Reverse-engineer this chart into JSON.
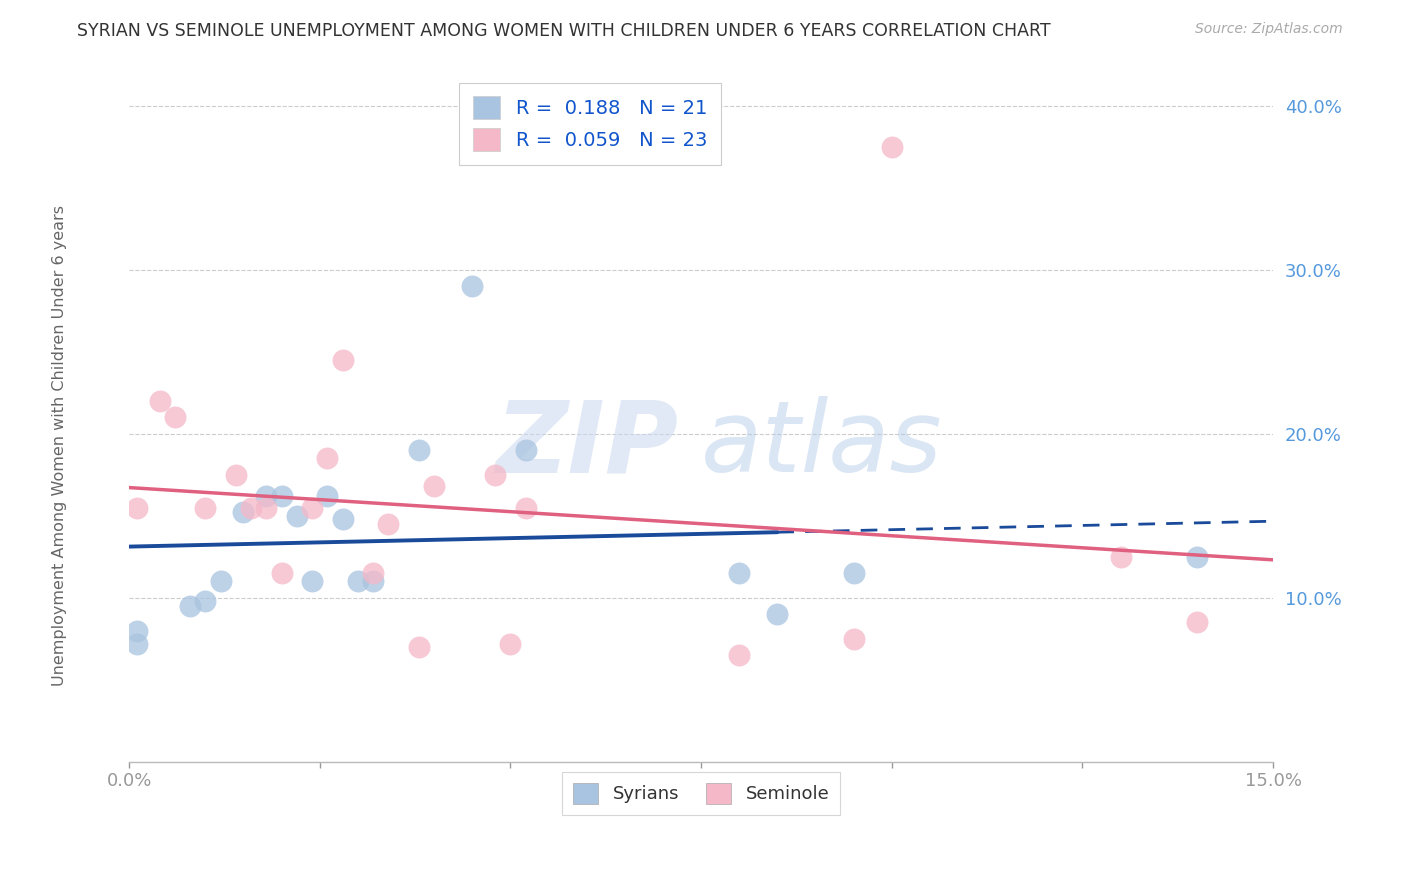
{
  "title": "SYRIAN VS SEMINOLE UNEMPLOYMENT AMONG WOMEN WITH CHILDREN UNDER 6 YEARS CORRELATION CHART",
  "source": "Source: ZipAtlas.com",
  "ylabel": "Unemployment Among Women with Children Under 6 years",
  "xlim": [
    0.0,
    0.15
  ],
  "ylim": [
    0.0,
    0.42
  ],
  "yticks": [
    0.0,
    0.1,
    0.2,
    0.3,
    0.4
  ],
  "ytick_labels": [
    "",
    "10.0%",
    "20.0%",
    "30.0%",
    "40.0%"
  ],
  "xticks": [
    0.0,
    0.025,
    0.05,
    0.075,
    0.1,
    0.125,
    0.15
  ],
  "syrians_color": "#a8c4e0",
  "seminole_color": "#f4b8c8",
  "syrians_line_color": "#1a4a9a",
  "seminole_line_color": "#e06080",
  "r_syrians": 0.188,
  "n_syrians": 21,
  "r_seminole": 0.059,
  "n_seminole": 23,
  "legend_label_syrians": "Syrians",
  "legend_label_seminole": "Seminole",
  "watermark_zip": "ZIP",
  "watermark_atlas": "atlas",
  "syrians_x": [
    0.001,
    0.001,
    0.008,
    0.01,
    0.012,
    0.015,
    0.018,
    0.02,
    0.022,
    0.024,
    0.026,
    0.028,
    0.03,
    0.032,
    0.038,
    0.045,
    0.052,
    0.08,
    0.085,
    0.095,
    0.14
  ],
  "syrians_y": [
    0.072,
    0.08,
    0.095,
    0.098,
    0.11,
    0.152,
    0.162,
    0.162,
    0.15,
    0.11,
    0.162,
    0.148,
    0.11,
    0.11,
    0.19,
    0.29,
    0.19,
    0.115,
    0.09,
    0.115,
    0.125
  ],
  "seminole_x": [
    0.001,
    0.004,
    0.006,
    0.01,
    0.014,
    0.016,
    0.018,
    0.02,
    0.024,
    0.026,
    0.028,
    0.032,
    0.034,
    0.038,
    0.04,
    0.048,
    0.05,
    0.052,
    0.08,
    0.095,
    0.1,
    0.13,
    0.14
  ],
  "seminole_y": [
    0.155,
    0.22,
    0.21,
    0.155,
    0.175,
    0.155,
    0.155,
    0.115,
    0.155,
    0.185,
    0.245,
    0.115,
    0.145,
    0.07,
    0.168,
    0.175,
    0.072,
    0.155,
    0.065,
    0.075,
    0.375,
    0.125,
    0.085
  ],
  "background_color": "#ffffff",
  "grid_color": "#cccccc",
  "title_color": "#333333",
  "axis_label_color": "#5599dd",
  "syrians_line_dashed_start": 0.085
}
